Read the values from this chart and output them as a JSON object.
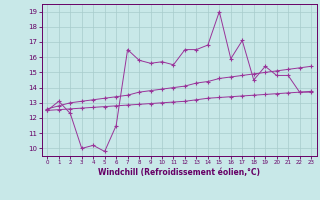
{
  "xlabel": "Windchill (Refroidissement éolien,°C)",
  "bg_color": "#c8e8e8",
  "grid_color": "#a8cccc",
  "line_color": "#993399",
  "x_values": [
    0,
    1,
    2,
    3,
    4,
    5,
    6,
    7,
    8,
    9,
    10,
    11,
    12,
    13,
    14,
    15,
    16,
    17,
    18,
    19,
    20,
    21,
    22,
    23
  ],
  "y_top": [
    12.5,
    13.1,
    12.3,
    10.0,
    10.2,
    9.8,
    11.5,
    16.5,
    15.8,
    15.6,
    15.7,
    15.5,
    16.5,
    16.5,
    16.8,
    19.0,
    15.9,
    17.1,
    14.5,
    15.4,
    14.8,
    14.8,
    13.7,
    13.7
  ],
  "y_mid": [
    12.6,
    12.8,
    13.0,
    13.1,
    13.2,
    13.3,
    13.4,
    13.5,
    13.7,
    13.8,
    13.9,
    14.0,
    14.1,
    14.3,
    14.4,
    14.6,
    14.7,
    14.8,
    14.9,
    15.0,
    15.1,
    15.2,
    15.3,
    15.4
  ],
  "y_bot": [
    12.5,
    12.55,
    12.6,
    12.65,
    12.7,
    12.75,
    12.8,
    12.85,
    12.9,
    12.95,
    13.0,
    13.05,
    13.1,
    13.2,
    13.3,
    13.35,
    13.4,
    13.45,
    13.5,
    13.55,
    13.6,
    13.65,
    13.7,
    13.75
  ],
  "ylim": [
    9.5,
    19.5
  ],
  "xlim": [
    -0.5,
    23.5
  ],
  "yticks": [
    10,
    11,
    12,
    13,
    14,
    15,
    16,
    17,
    18,
    19
  ],
  "xticks": [
    0,
    1,
    2,
    3,
    4,
    5,
    6,
    7,
    8,
    9,
    10,
    11,
    12,
    13,
    14,
    15,
    16,
    17,
    18,
    19,
    20,
    21,
    22,
    23
  ]
}
